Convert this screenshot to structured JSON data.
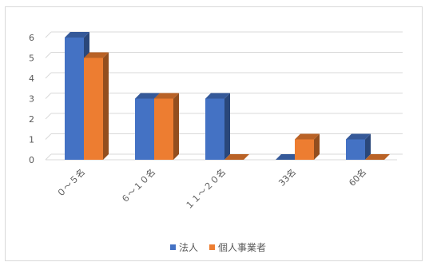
{
  "chart_data": {
    "type": "bar",
    "categories": [
      "0～5名",
      "6～10名",
      "11～20名",
      "33名",
      "60名"
    ],
    "categories_display": [
      "０～５名",
      "６～１０名",
      "１１～２０名",
      "33名",
      "60名"
    ],
    "series": [
      {
        "name": "法人",
        "values": [
          6,
          3,
          3,
          0,
          1
        ],
        "color": "#4472C4"
      },
      {
        "name": "個人事業者",
        "values": [
          5,
          3,
          0,
          1,
          0
        ],
        "color": "#ED7D31"
      }
    ],
    "ylim": [
      0,
      6
    ],
    "yticks": [
      "0",
      "1",
      "2",
      "3",
      "4",
      "5",
      "6"
    ],
    "grid": true,
    "legend_position": "bottom",
    "style": "3d-clustered-column"
  }
}
